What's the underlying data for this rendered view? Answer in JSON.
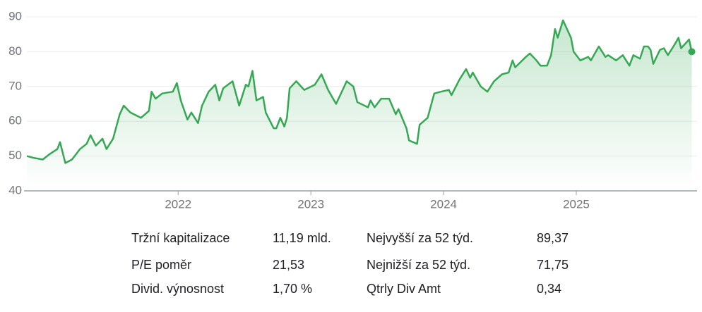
{
  "chart_data": {
    "type": "line",
    "x": [
      2020.86,
      2020.91,
      2020.98,
      2021.03,
      2021.09,
      2021.11,
      2021.15,
      2021.2,
      2021.26,
      2021.31,
      2021.34,
      2021.38,
      2021.43,
      2021.46,
      2021.51,
      2021.56,
      2021.59,
      2021.64,
      2021.72,
      2021.78,
      2021.8,
      2021.83,
      2021.88,
      2021.96,
      2021.99,
      2022.02,
      2022.07,
      2022.1,
      2022.15,
      2022.18,
      2022.23,
      2022.28,
      2022.31,
      2022.34,
      2022.41,
      2022.46,
      2022.51,
      2022.53,
      2022.56,
      2022.59,
      2022.64,
      2022.66,
      2022.72,
      2022.74,
      2022.77,
      2022.8,
      2022.82,
      2022.84,
      2022.89,
      2022.95,
      2023.03,
      2023.08,
      2023.13,
      2023.19,
      2023.27,
      2023.32,
      2023.35,
      2023.43,
      2023.45,
      2023.48,
      2023.53,
      2023.59,
      2023.64,
      2023.66,
      2023.72,
      2023.74,
      2023.8,
      2023.82,
      2023.88,
      2023.93,
      2023.98,
      2024.04,
      2024.06,
      2024.12,
      2024.17,
      2024.2,
      2024.22,
      2024.28,
      2024.33,
      2024.38,
      2024.44,
      2024.49,
      2024.52,
      2024.54,
      2024.62,
      2024.65,
      2024.7,
      2024.73,
      2024.78,
      2024.81,
      2024.84,
      2024.86,
      2024.9,
      2024.96,
      2024.98,
      2025.03,
      2025.09,
      2025.11,
      2025.17,
      2025.22,
      2025.24,
      2025.3,
      2025.35,
      2025.4,
      2025.43,
      2025.48,
      2025.51,
      2025.54,
      2025.56,
      2025.58,
      2025.63,
      2025.66,
      2025.69,
      2025.74,
      2025.77,
      2025.79,
      2025.85,
      2025.87
    ],
    "series": [
      {
        "color": "#34a853",
        "values": [
          50,
          49.5,
          49,
          50.5,
          52,
          54,
          48,
          49,
          52,
          53.5,
          56,
          53,
          55,
          52,
          55,
          62,
          64.5,
          62.5,
          61,
          63,
          68.5,
          66.5,
          68,
          68.5,
          71,
          66,
          60.5,
          62.5,
          59.5,
          64.5,
          68.5,
          70.5,
          66,
          69.5,
          71.5,
          64.5,
          70.5,
          70,
          74.5,
          66,
          67,
          62.5,
          58,
          58,
          61,
          58.5,
          61,
          69.5,
          71.5,
          69,
          70.5,
          73.5,
          69,
          65,
          71.5,
          70,
          65.5,
          64,
          66,
          64,
          66.5,
          66.5,
          62,
          63.5,
          58,
          54.5,
          53.5,
          59,
          61,
          68,
          68.5,
          69,
          67.5,
          72,
          75,
          72.5,
          74,
          70,
          68.5,
          71.5,
          73.5,
          74,
          77.5,
          75.5,
          78.5,
          79.5,
          77.5,
          76,
          76,
          79,
          86.5,
          84,
          89,
          84,
          80,
          77.5,
          78.5,
          77.5,
          81.5,
          78.5,
          79,
          77.5,
          79,
          76,
          79,
          78,
          81.5,
          81.5,
          80.5,
          76.5,
          80.5,
          81,
          79,
          82,
          84,
          81,
          83.5,
          80
        ]
      }
    ],
    "xlim": [
      2020.86,
      2025.91
    ],
    "xticks": [
      2022,
      2023,
      2024,
      2025
    ],
    "ylim": [
      40,
      90
    ],
    "yticks": [
      40,
      50,
      60,
      70,
      80,
      90
    ],
    "grid": true
  },
  "stats": {
    "rows": [
      [
        "Tržní kapitalizace",
        "11,19 mld.",
        "Nejvyšší za 52 týd.",
        "89,37"
      ],
      [
        "P/E poměr",
        "21,53",
        "Nejnižší za 52 týd.",
        "71,75"
      ],
      [
        "Divid. výnosnost",
        "1,70 %",
        "Qtrly Div Amt",
        "0,34"
      ]
    ]
  }
}
